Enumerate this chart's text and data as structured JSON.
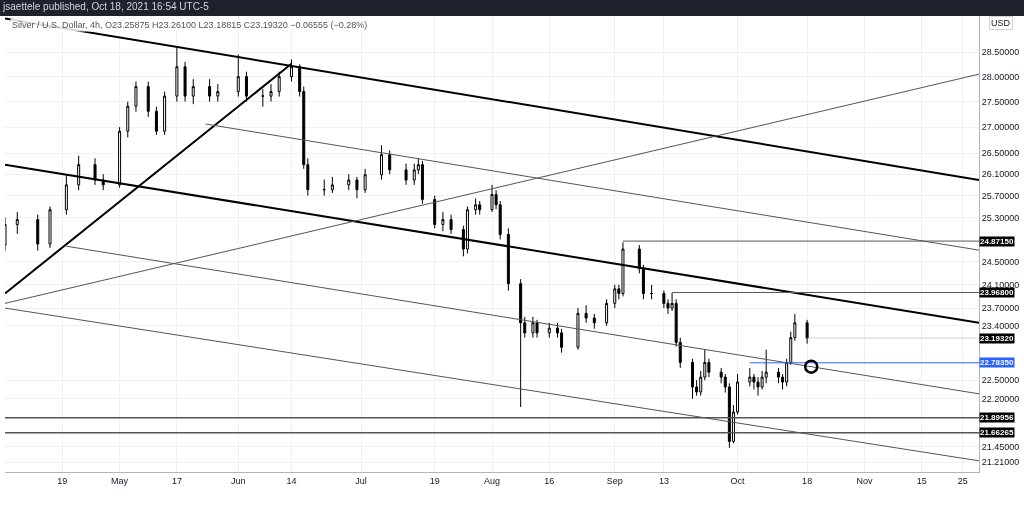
{
  "chart_data": {
    "type": "candlestick",
    "title": "jsaettele published, Oct 18, 2021 16:54 UTC-5",
    "subtitle": "Silver / U.S. Dollar, 4h, O23.25875 H23.26100 L23.18815 C23.19320 −0.06555 (−0.28%)",
    "ylabel": "USD",
    "x": [
      "2021-04-05",
      "2021-04-08",
      "2021-04-13",
      "2021-04-16",
      "2021-04-20",
      "2021-04-23",
      "2021-04-27",
      "2021-04-29",
      "2021-05-03",
      "2021-05-05",
      "2021-05-07",
      "2021-05-10",
      "2021-05-12",
      "2021-05-14",
      "2021-05-17",
      "2021-05-19",
      "2021-05-21",
      "2021-05-25",
      "2021-05-27",
      "2021-06-01",
      "2021-06-03",
      "2021-06-07",
      "2021-06-09",
      "2021-06-11",
      "2021-06-14",
      "2021-06-16",
      "2021-06-17",
      "2021-06-18",
      "2021-06-22",
      "2021-06-24",
      "2021-06-28",
      "2021-06-30",
      "2021-07-02",
      "2021-07-06",
      "2021-07-08",
      "2021-07-12",
      "2021-07-14",
      "2021-07-15",
      "2021-07-16",
      "2021-07-19",
      "2021-07-21",
      "2021-07-23",
      "2021-07-26",
      "2021-07-27",
      "2021-07-29",
      "2021-07-30",
      "2021-08-02",
      "2021-08-03",
      "2021-08-04",
      "2021-08-06",
      "2021-08-09",
      "2021-08-10",
      "2021-08-12",
      "2021-08-13",
      "2021-08-16",
      "2021-08-18",
      "2021-08-19",
      "2021-08-23",
      "2021-08-25",
      "2021-08-27",
      "2021-08-30",
      "2021-09-01",
      "2021-09-02",
      "2021-09-03",
      "2021-09-07",
      "2021-09-08",
      "2021-09-10",
      "2021-09-13",
      "2021-09-14",
      "2021-09-15",
      "2021-09-16",
      "2021-09-17",
      "2021-09-20",
      "2021-09-21",
      "2021-09-22",
      "2021-09-23",
      "2021-09-24",
      "2021-09-27",
      "2021-09-28",
      "2021-09-29",
      "2021-09-30",
      "2021-10-01",
      "2021-10-04",
      "2021-10-05",
      "2021-10-06",
      "2021-10-07",
      "2021-10-08",
      "2021-10-11",
      "2021-10-12",
      "2021-10-13",
      "2021-10-14",
      "2021-10-15",
      "2021-10-18"
    ],
    "ohlc": [
      [
        24.8,
        25.3,
        24.7,
        25.17
      ],
      [
        25.17,
        25.4,
        25.0,
        25.26
      ],
      [
        25.26,
        25.35,
        24.7,
        24.82
      ],
      [
        24.82,
        25.5,
        24.75,
        25.44
      ],
      [
        25.44,
        26.1,
        25.35,
        25.9
      ],
      [
        25.9,
        26.45,
        25.8,
        26.28
      ],
      [
        26.28,
        26.4,
        25.9,
        25.99
      ],
      [
        25.99,
        26.1,
        25.8,
        25.9
      ],
      [
        25.9,
        27.0,
        25.85,
        26.92
      ],
      [
        26.92,
        27.5,
        26.8,
        27.41
      ],
      [
        27.41,
        27.9,
        27.3,
        27.8
      ],
      [
        27.8,
        27.9,
        27.2,
        27.31
      ],
      [
        27.31,
        27.4,
        26.85,
        26.92
      ],
      [
        26.92,
        27.7,
        26.85,
        27.61
      ],
      [
        27.61,
        28.6,
        27.5,
        28.2
      ],
      [
        28.2,
        28.3,
        27.5,
        27.61
      ],
      [
        27.61,
        27.95,
        27.45,
        27.8
      ],
      [
        27.8,
        27.95,
        27.5,
        27.61
      ],
      [
        27.61,
        27.85,
        27.5,
        27.7
      ],
      [
        27.7,
        28.45,
        27.6,
        28.0
      ],
      [
        28.0,
        28.1,
        27.5,
        27.61
      ],
      [
        27.61,
        27.75,
        27.4,
        27.61
      ],
      [
        27.61,
        27.85,
        27.5,
        27.7
      ],
      [
        27.7,
        28.1,
        27.6,
        28.0
      ],
      [
        28.0,
        28.35,
        27.9,
        28.2
      ],
      [
        28.2,
        28.25,
        27.6,
        27.7
      ],
      [
        27.7,
        27.8,
        26.2,
        26.28
      ],
      [
        26.28,
        26.4,
        25.7,
        25.81
      ],
      [
        25.81,
        26.0,
        25.7,
        25.81
      ],
      [
        25.81,
        26.05,
        25.75,
        25.9
      ],
      [
        25.9,
        26.1,
        25.8,
        25.99
      ],
      [
        25.99,
        26.05,
        25.65,
        25.81
      ],
      [
        25.81,
        26.2,
        25.75,
        26.09
      ],
      [
        26.09,
        26.65,
        26.0,
        26.47
      ],
      [
        26.47,
        26.55,
        26.1,
        26.18
      ],
      [
        26.18,
        26.3,
        25.9,
        25.99
      ],
      [
        25.99,
        26.3,
        25.9,
        26.18
      ],
      [
        26.18,
        26.4,
        26.1,
        26.28
      ],
      [
        26.28,
        26.35,
        25.55,
        25.63
      ],
      [
        25.63,
        25.7,
        25.1,
        25.17
      ],
      [
        25.17,
        25.4,
        25.05,
        25.26
      ],
      [
        25.26,
        25.35,
        25.0,
        25.08
      ],
      [
        25.08,
        25.15,
        24.6,
        24.73
      ],
      [
        24.73,
        25.5,
        24.65,
        25.44
      ],
      [
        25.44,
        25.65,
        25.35,
        25.53
      ],
      [
        25.53,
        25.6,
        25.35,
        25.44
      ],
      [
        25.44,
        25.9,
        25.4,
        25.72
      ],
      [
        25.72,
        25.8,
        25.45,
        25.53
      ],
      [
        25.53,
        25.6,
        24.9,
        24.99
      ],
      [
        24.99,
        25.1,
        24.0,
        24.12
      ],
      [
        24.12,
        24.2,
        22.07,
        23.45
      ],
      [
        23.45,
        23.55,
        23.2,
        23.28
      ],
      [
        23.28,
        23.55,
        23.2,
        23.45
      ],
      [
        23.45,
        23.5,
        23.2,
        23.28
      ],
      [
        23.28,
        23.45,
        23.2,
        23.36
      ],
      [
        23.36,
        23.45,
        23.2,
        23.28
      ],
      [
        23.28,
        23.35,
        22.95,
        23.04
      ],
      [
        23.04,
        23.7,
        23.0,
        23.61
      ],
      [
        23.61,
        23.75,
        23.45,
        23.53
      ],
      [
        23.53,
        23.6,
        23.35,
        23.45
      ],
      [
        23.45,
        23.85,
        23.4,
        23.78
      ],
      [
        23.78,
        24.1,
        23.7,
        24.03
      ],
      [
        24.03,
        24.1,
        23.85,
        23.95
      ],
      [
        23.95,
        24.85,
        23.9,
        24.73
      ],
      [
        24.73,
        24.8,
        24.3,
        24.38
      ],
      [
        24.38,
        24.45,
        23.85,
        23.95
      ],
      [
        23.95,
        24.1,
        23.85,
        23.95
      ],
      [
        23.95,
        24.0,
        23.7,
        23.78
      ],
      [
        23.78,
        23.85,
        23.6,
        23.7
      ],
      [
        23.7,
        23.96,
        23.65,
        23.78
      ],
      [
        23.78,
        23.85,
        23.05,
        23.12
      ],
      [
        23.12,
        23.2,
        22.7,
        22.79
      ],
      [
        22.79,
        22.85,
        22.2,
        22.39
      ],
      [
        22.39,
        22.5,
        22.25,
        22.31
      ],
      [
        22.31,
        22.65,
        22.25,
        22.55
      ],
      [
        22.55,
        23.0,
        22.5,
        22.79
      ],
      [
        22.79,
        22.85,
        22.55,
        22.63
      ],
      [
        22.63,
        22.7,
        22.45,
        22.55
      ],
      [
        22.55,
        22.6,
        22.3,
        22.39
      ],
      [
        22.39,
        22.45,
        21.43,
        21.53
      ],
      [
        21.53,
        22.1,
        21.5,
        21.99
      ],
      [
        21.99,
        22.6,
        21.95,
        22.47
      ],
      [
        22.47,
        22.7,
        22.4,
        22.55
      ],
      [
        22.55,
        22.6,
        22.35,
        22.47
      ],
      [
        22.47,
        22.55,
        22.25,
        22.39
      ],
      [
        22.39,
        22.65,
        22.35,
        22.55
      ],
      [
        22.55,
        23.0,
        22.45,
        22.63
      ],
      [
        22.63,
        22.7,
        22.45,
        22.55
      ],
      [
        22.55,
        22.6,
        22.35,
        22.47
      ],
      [
        22.47,
        22.85,
        22.4,
        22.79
      ],
      [
        22.79,
        23.3,
        22.75,
        23.2
      ],
      [
        23.2,
        23.6,
        23.15,
        23.45
      ],
      [
        23.45,
        23.5,
        23.1,
        23.1932
      ]
    ],
    "color": "#000000",
    "series": [
      {
        "type": "line",
        "color": "#000000",
        "x": [
          "2021-04-05",
          "2021-11-29"
        ],
        "values": [
          29.2,
          25.99
        ]
      },
      {
        "type": "line",
        "color": "#000000",
        "x": [
          "2021-04-05",
          "2021-11-29"
        ],
        "values": [
          26.28,
          23.45
        ]
      },
      {
        "type": "line",
        "color": "#000000",
        "x": [
          "2021-04-05",
          "2021-06-14"
        ],
        "values": [
          23.95,
          28.26
        ]
      },
      {
        "type": "line",
        "color": "#555555",
        "x": [
          "2021-04-05",
          "2021-11-29"
        ],
        "values": [
          23.78,
          28.05
        ]
      },
      {
        "type": "line",
        "color": "#555555",
        "x": [
          "2021-05-24",
          "2021-11-29"
        ],
        "values": [
          27.06,
          24.71
        ]
      },
      {
        "type": "line",
        "color": "#555555",
        "x": [
          "2021-04-20",
          "2021-11-29"
        ],
        "values": [
          24.78,
          22.28
        ]
      },
      {
        "type": "line",
        "color": "#555555",
        "x": [
          "2021-04-05",
          "2021-11-29"
        ],
        "values": [
          23.7,
          21.23
        ]
      },
      {
        "type": "line",
        "color": "#555555",
        "x": [
          "2021-09-03",
          "2021-11-29"
        ],
        "values": [
          24.8715,
          24.8715
        ]
      },
      {
        "type": "line",
        "color": "#555555",
        "x": [
          "2021-09-15",
          "2021-11-29"
        ],
        "values": [
          23.968,
          23.968
        ]
      },
      {
        "type": "line",
        "color": "#2962ff",
        "x": [
          "2021-10-04",
          "2021-11-29"
        ],
        "values": [
          22.7835,
          22.7835
        ]
      },
      {
        "type": "scatter",
        "color": "#000000",
        "marker": "circle",
        "x": [
          "2021-10-19"
        ],
        "values": [
          22.72
        ]
      }
    ],
    "ref_lines": [
      {
        "axis": "y",
        "value": 21.89956,
        "label": "21.89956",
        "color": "#555555"
      },
      {
        "axis": "y",
        "value": 21.66265,
        "label": "21.66265",
        "color": "#555555"
      }
    ],
    "annotations": [
      {
        "text": "24.87150",
        "x": "2021-11-29",
        "y": 24.8715
      },
      {
        "text": "23.96800",
        "x": "2021-11-29",
        "y": 23.968
      },
      {
        "text": "23.19320",
        "x": "2021-10-18",
        "y": 23.1932
      },
      {
        "text": "22.78350",
        "x": "2021-11-29",
        "y": 22.7835
      }
    ],
    "log": "y",
    "grid": true,
    "xlim": [
      "2021-04-05",
      "2021-11-29"
    ],
    "xticks": [
      {
        "value": "2021-04-19",
        "label": "19"
      },
      {
        "value": "2021-05-03",
        "label": "May"
      },
      {
        "value": "2021-05-17",
        "label": "17"
      },
      {
        "value": "2021-06-01",
        "label": "Jun"
      },
      {
        "value": "2021-06-14",
        "label": "14"
      },
      {
        "value": "2021-07-01",
        "label": "Jul"
      },
      {
        "value": "2021-07-19",
        "label": "19"
      },
      {
        "value": "2021-08-02",
        "label": "Aug"
      },
      {
        "value": "2021-08-16",
        "label": "16"
      },
      {
        "value": "2021-09-01",
        "label": "Sep"
      },
      {
        "value": "2021-09-13",
        "label": "13"
      },
      {
        "value": "2021-10-01",
        "label": "Oct"
      },
      {
        "value": "2021-10-18",
        "label": "18"
      },
      {
        "value": "2021-11-01",
        "label": "Nov"
      },
      {
        "value": "2021-11-15",
        "label": "15"
      },
      {
        "value": "2021-11-25",
        "label": "25"
      }
    ],
    "ylim": [
      21.06,
      29.25
    ],
    "yticks": [
      {
        "value": 21.21,
        "label": "21.21000"
      },
      {
        "value": 21.45,
        "label": "21.45000"
      },
      {
        "value": 22.2,
        "label": "22.20000"
      },
      {
        "value": 22.5,
        "label": "22.50000"
      },
      {
        "value": 23.4,
        "label": "23.40000"
      },
      {
        "value": 23.7,
        "label": "23.70000"
      },
      {
        "value": 24.1,
        "label": "24.10000"
      },
      {
        "value": 24.5,
        "label": "24.50000"
      },
      {
        "value": 25.3,
        "label": "25.30000"
      },
      {
        "value": 25.7,
        "label": "25.70000"
      },
      {
        "value": 26.1,
        "label": "26.10000"
      },
      {
        "value": 26.5,
        "label": "26.50000"
      },
      {
        "value": 27.0,
        "label": "27.00000"
      },
      {
        "value": 27.5,
        "label": "27.50000"
      },
      {
        "value": 28.0,
        "label": "28.00000"
      },
      {
        "value": 28.5,
        "label": "28.50000"
      }
    ]
  }
}
